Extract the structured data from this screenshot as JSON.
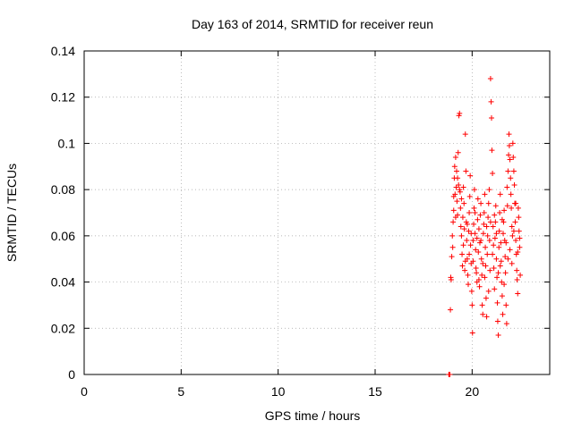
{
  "chart_data": {
    "type": "scatter",
    "title": "Day 163 of 2014, SRMTID for receiver reun",
    "xlabel": "GPS time / hours",
    "ylabel": "SRMTID / TECUs",
    "xlim": [
      0,
      24
    ],
    "ylim": [
      0,
      0.14
    ],
    "xticks": [
      0,
      5,
      10,
      15,
      20
    ],
    "xtick_labels": [
      "0",
      "5",
      "10",
      "15",
      "20"
    ],
    "yticks": [
      0,
      0.02,
      0.04,
      0.06,
      0.08,
      0.1,
      0.12,
      0.14
    ],
    "ytick_labels": [
      "0",
      "0.02",
      "0.04",
      "0.06",
      "0.08",
      "0.1",
      "0.12",
      "0.14"
    ],
    "grid": true,
    "marker": "plus",
    "marker_color": "#ff0000",
    "series": [
      {
        "name": "SRMTID",
        "points": [
          [
            18.8,
            0.0
          ],
          [
            18.82,
            0.0
          ],
          [
            18.85,
            0.0
          ],
          [
            18.88,
            0.028
          ],
          [
            18.9,
            0.042
          ],
          [
            18.92,
            0.041
          ],
          [
            18.95,
            0.051
          ],
          [
            18.98,
            0.06
          ],
          [
            19.0,
            0.055
          ],
          [
            19.02,
            0.066
          ],
          [
            19.05,
            0.071
          ],
          [
            19.08,
            0.085
          ],
          [
            19.1,
            0.09
          ],
          [
            19.12,
            0.078
          ],
          [
            19.15,
            0.094
          ],
          [
            19.18,
            0.081
          ],
          [
            19.2,
            0.088
          ],
          [
            19.22,
            0.075
          ],
          [
            19.25,
            0.069
          ],
          [
            19.28,
            0.096
          ],
          [
            19.3,
            0.082
          ],
          [
            19.32,
            0.112
          ],
          [
            19.35,
            0.113
          ],
          [
            19.38,
            0.079
          ],
          [
            19.4,
            0.072
          ],
          [
            19.42,
            0.064
          ],
          [
            19.45,
            0.06
          ],
          [
            19.48,
            0.052
          ],
          [
            19.5,
            0.047
          ],
          [
            19.52,
            0.068
          ],
          [
            19.55,
            0.081
          ],
          [
            19.58,
            0.074
          ],
          [
            19.6,
            0.063
          ],
          [
            19.62,
            0.045
          ],
          [
            19.65,
            0.104
          ],
          [
            19.68,
            0.088
          ],
          [
            19.7,
            0.066
          ],
          [
            19.72,
            0.058
          ],
          [
            19.75,
            0.05
          ],
          [
            19.78,
            0.043
          ],
          [
            19.8,
            0.039
          ],
          [
            19.82,
            0.062
          ],
          [
            19.85,
            0.07
          ],
          [
            19.88,
            0.077
          ],
          [
            19.9,
            0.086
          ],
          [
            19.92,
            0.056
          ],
          [
            19.95,
            0.048
          ],
          [
            19.98,
            0.036
          ],
          [
            20.0,
            0.03
          ],
          [
            20.02,
            0.018
          ],
          [
            20.05,
            0.058
          ],
          [
            20.08,
            0.065
          ],
          [
            20.1,
            0.072
          ],
          [
            20.12,
            0.08
          ],
          [
            20.15,
            0.061
          ],
          [
            20.18,
            0.054
          ],
          [
            20.2,
            0.046
          ],
          [
            20.22,
            0.044
          ],
          [
            20.25,
            0.059
          ],
          [
            20.28,
            0.067
          ],
          [
            20.3,
            0.076
          ],
          [
            20.32,
            0.053
          ],
          [
            20.35,
            0.041
          ],
          [
            20.38,
            0.038
          ],
          [
            20.4,
            0.057
          ],
          [
            20.42,
            0.069
          ],
          [
            20.45,
            0.074
          ],
          [
            20.48,
            0.05
          ],
          [
            20.5,
            0.043
          ],
          [
            20.52,
            0.03
          ],
          [
            20.55,
            0.026
          ],
          [
            20.58,
            0.061
          ],
          [
            20.6,
            0.065
          ],
          [
            20.62,
            0.07
          ],
          [
            20.65,
            0.078
          ],
          [
            20.68,
            0.055
          ],
          [
            20.7,
            0.047
          ],
          [
            20.72,
            0.033
          ],
          [
            20.75,
            0.025
          ],
          [
            20.78,
            0.052
          ],
          [
            20.8,
            0.06
          ],
          [
            20.82,
            0.068
          ],
          [
            20.85,
            0.074
          ],
          [
            20.88,
            0.08
          ],
          [
            20.9,
            0.058
          ],
          [
            20.92,
            0.045
          ],
          [
            20.95,
            0.128
          ],
          [
            20.98,
            0.118
          ],
          [
            21.0,
            0.111
          ],
          [
            21.02,
            0.097
          ],
          [
            21.05,
            0.087
          ],
          [
            21.08,
            0.064
          ],
          [
            21.1,
            0.056
          ],
          [
            21.12,
            0.046
          ],
          [
            21.15,
            0.037
          ],
          [
            21.18,
            0.059
          ],
          [
            21.2,
            0.066
          ],
          [
            21.22,
            0.073
          ],
          [
            21.25,
            0.05
          ],
          [
            21.28,
            0.042
          ],
          [
            21.3,
            0.031
          ],
          [
            21.32,
            0.023
          ],
          [
            21.35,
            0.017
          ],
          [
            21.38,
            0.055
          ],
          [
            21.4,
            0.062
          ],
          [
            21.42,
            0.07
          ],
          [
            21.45,
            0.078
          ],
          [
            21.48,
            0.057
          ],
          [
            21.5,
            0.049
          ],
          [
            21.52,
            0.04
          ],
          [
            21.55,
            0.034
          ],
          [
            21.58,
            0.026
          ],
          [
            21.6,
            0.061
          ],
          [
            21.62,
            0.066
          ],
          [
            21.65,
            0.071
          ],
          [
            21.68,
            0.058
          ],
          [
            21.7,
            0.051
          ],
          [
            21.72,
            0.044
          ],
          [
            21.75,
            0.03
          ],
          [
            21.78,
            0.022
          ],
          [
            21.8,
            0.081
          ],
          [
            21.82,
            0.073
          ],
          [
            21.85,
            0.088
          ],
          [
            21.88,
            0.095
          ],
          [
            21.9,
            0.104
          ],
          [
            21.92,
            0.099
          ],
          [
            21.95,
            0.093
          ],
          [
            21.98,
            0.085
          ],
          [
            22.0,
            0.078
          ],
          [
            22.02,
            0.072
          ],
          [
            22.05,
            0.064
          ],
          [
            22.08,
            0.06
          ],
          [
            22.1,
            0.1
          ],
          [
            22.12,
            0.094
          ],
          [
            22.15,
            0.088
          ],
          [
            22.18,
            0.082
          ],
          [
            22.2,
            0.074
          ],
          [
            22.22,
            0.066
          ],
          [
            22.25,
            0.058
          ],
          [
            22.28,
            0.052
          ],
          [
            22.3,
            0.045
          ],
          [
            22.32,
            0.041
          ],
          [
            22.35,
            0.035
          ],
          [
            22.38,
            0.072
          ],
          [
            22.4,
            0.068
          ],
          [
            22.42,
            0.062
          ],
          [
            22.45,
            0.055
          ],
          [
            22.48,
            0.043
          ],
          [
            19.05,
            0.077
          ],
          [
            19.15,
            0.068
          ],
          [
            19.25,
            0.085
          ],
          [
            19.35,
            0.08
          ],
          [
            19.45,
            0.076
          ],
          [
            19.55,
            0.056
          ],
          [
            19.65,
            0.049
          ],
          [
            19.75,
            0.065
          ],
          [
            19.85,
            0.052
          ],
          [
            19.95,
            0.061
          ],
          [
            20.05,
            0.049
          ],
          [
            20.15,
            0.07
          ],
          [
            20.25,
            0.04
          ],
          [
            20.35,
            0.063
          ],
          [
            20.45,
            0.058
          ],
          [
            20.55,
            0.048
          ],
          [
            20.65,
            0.042
          ],
          [
            20.75,
            0.064
          ],
          [
            20.85,
            0.036
          ],
          [
            20.95,
            0.066
          ],
          [
            21.05,
            0.052
          ],
          [
            21.15,
            0.069
          ],
          [
            21.25,
            0.061
          ],
          [
            21.35,
            0.044
          ],
          [
            21.45,
            0.047
          ],
          [
            21.55,
            0.067
          ],
          [
            21.65,
            0.039
          ],
          [
            21.75,
            0.057
          ],
          [
            21.85,
            0.05
          ],
          [
            21.95,
            0.054
          ],
          [
            22.05,
            0.048
          ],
          [
            22.15,
            0.062
          ],
          [
            22.25,
            0.074
          ],
          [
            22.35,
            0.053
          ],
          [
            22.45,
            0.059
          ]
        ]
      }
    ]
  }
}
